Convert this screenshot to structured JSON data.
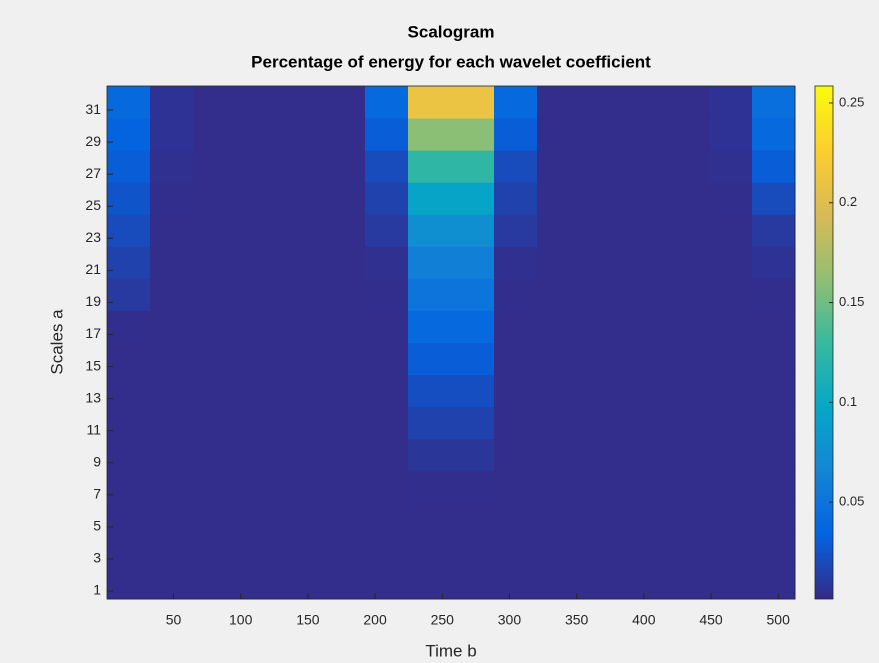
{
  "chart_data": {
    "type": "heatmap",
    "title": "Scalogram",
    "subtitle": "Percentage of energy for each wavelet coefficient",
    "xlabel": "Time b",
    "ylabel": "Scales a",
    "x_bins": [
      0.5,
      32.5,
      64.5,
      96.5,
      128.5,
      160.5,
      192.5,
      224.5,
      256.5,
      288.5,
      320.5,
      352.5,
      384.5,
      416.5,
      448.5,
      480.5,
      512.5
    ],
    "y_bins": [
      0.5,
      2.5,
      4.5,
      6.5,
      8.5,
      10.5,
      12.5,
      14.5,
      16.5,
      18.5,
      20.5,
      22.5,
      24.5,
      26.5,
      28.5,
      30.5,
      32.5
    ],
    "values": [
      [
        0.003,
        0.003,
        0.003,
        0.003,
        0.003,
        0.003,
        0.003,
        0.003,
        0.003,
        0.003,
        0.003,
        0.003,
        0.003,
        0.003,
        0.003,
        0.003
      ],
      [
        0.003,
        0.003,
        0.003,
        0.003,
        0.003,
        0.003,
        0.003,
        0.003,
        0.003,
        0.003,
        0.003,
        0.003,
        0.003,
        0.003,
        0.003,
        0.003
      ],
      [
        0.003,
        0.003,
        0.003,
        0.003,
        0.003,
        0.003,
        0.003,
        0.003,
        0.003,
        0.003,
        0.003,
        0.003,
        0.003,
        0.003,
        0.003,
        0.003
      ],
      [
        0.003,
        0.003,
        0.003,
        0.003,
        0.003,
        0.003,
        0.003,
        0.004,
        0.004,
        0.003,
        0.003,
        0.003,
        0.003,
        0.003,
        0.003,
        0.003
      ],
      [
        0.003,
        0.003,
        0.003,
        0.003,
        0.003,
        0.003,
        0.003,
        0.008,
        0.008,
        0.003,
        0.003,
        0.003,
        0.003,
        0.003,
        0.003,
        0.003
      ],
      [
        0.003,
        0.003,
        0.003,
        0.003,
        0.003,
        0.003,
        0.003,
        0.015,
        0.015,
        0.003,
        0.003,
        0.003,
        0.003,
        0.003,
        0.003,
        0.003
      ],
      [
        0.003,
        0.003,
        0.003,
        0.003,
        0.003,
        0.003,
        0.003,
        0.022,
        0.022,
        0.003,
        0.003,
        0.003,
        0.003,
        0.003,
        0.003,
        0.003
      ],
      [
        0.003,
        0.003,
        0.003,
        0.003,
        0.003,
        0.003,
        0.003,
        0.03,
        0.03,
        0.003,
        0.003,
        0.003,
        0.003,
        0.003,
        0.003,
        0.003
      ],
      [
        0.004,
        0.003,
        0.003,
        0.003,
        0.003,
        0.003,
        0.003,
        0.04,
        0.04,
        0.003,
        0.003,
        0.003,
        0.003,
        0.003,
        0.003,
        0.003
      ],
      [
        0.01,
        0.003,
        0.003,
        0.003,
        0.003,
        0.003,
        0.004,
        0.05,
        0.05,
        0.004,
        0.003,
        0.003,
        0.003,
        0.003,
        0.003,
        0.004
      ],
      [
        0.015,
        0.003,
        0.003,
        0.003,
        0.003,
        0.003,
        0.005,
        0.06,
        0.06,
        0.005,
        0.003,
        0.003,
        0.003,
        0.003,
        0.003,
        0.006
      ],
      [
        0.02,
        0.003,
        0.003,
        0.003,
        0.003,
        0.003,
        0.01,
        0.075,
        0.075,
        0.01,
        0.003,
        0.003,
        0.003,
        0.003,
        0.003,
        0.01
      ],
      [
        0.025,
        0.004,
        0.003,
        0.003,
        0.003,
        0.003,
        0.015,
        0.095,
        0.095,
        0.015,
        0.003,
        0.003,
        0.003,
        0.003,
        0.004,
        0.02
      ],
      [
        0.03,
        0.005,
        0.003,
        0.003,
        0.003,
        0.003,
        0.02,
        0.125,
        0.125,
        0.02,
        0.003,
        0.003,
        0.003,
        0.003,
        0.005,
        0.03
      ],
      [
        0.035,
        0.006,
        0.003,
        0.003,
        0.003,
        0.003,
        0.03,
        0.16,
        0.16,
        0.03,
        0.003,
        0.003,
        0.003,
        0.003,
        0.006,
        0.04
      ],
      [
        0.04,
        0.006,
        0.003,
        0.003,
        0.003,
        0.003,
        0.04,
        0.21,
        0.21,
        0.04,
        0.003,
        0.003,
        0.003,
        0.003,
        0.006,
        0.045
      ]
    ],
    "xlim": [
      0.5,
      512.5
    ],
    "ylim": [
      0.5,
      32.5
    ],
    "xticks": [
      50,
      100,
      150,
      200,
      250,
      300,
      350,
      400,
      450,
      500
    ],
    "yticks": [
      1,
      3,
      5,
      7,
      9,
      11,
      13,
      15,
      17,
      19,
      21,
      23,
      25,
      27,
      29,
      31
    ],
    "clim": [
      0.0015,
      0.2585
    ],
    "cticks": [
      0.05,
      0.1,
      0.15,
      0.2,
      0.25
    ],
    "colormap": [
      "#352a87",
      "#0363e1",
      "#1485d4",
      "#06a7c6",
      "#38b99e",
      "#92bf73",
      "#d9ba56",
      "#fcce2e",
      "#f9fb0e"
    ]
  }
}
